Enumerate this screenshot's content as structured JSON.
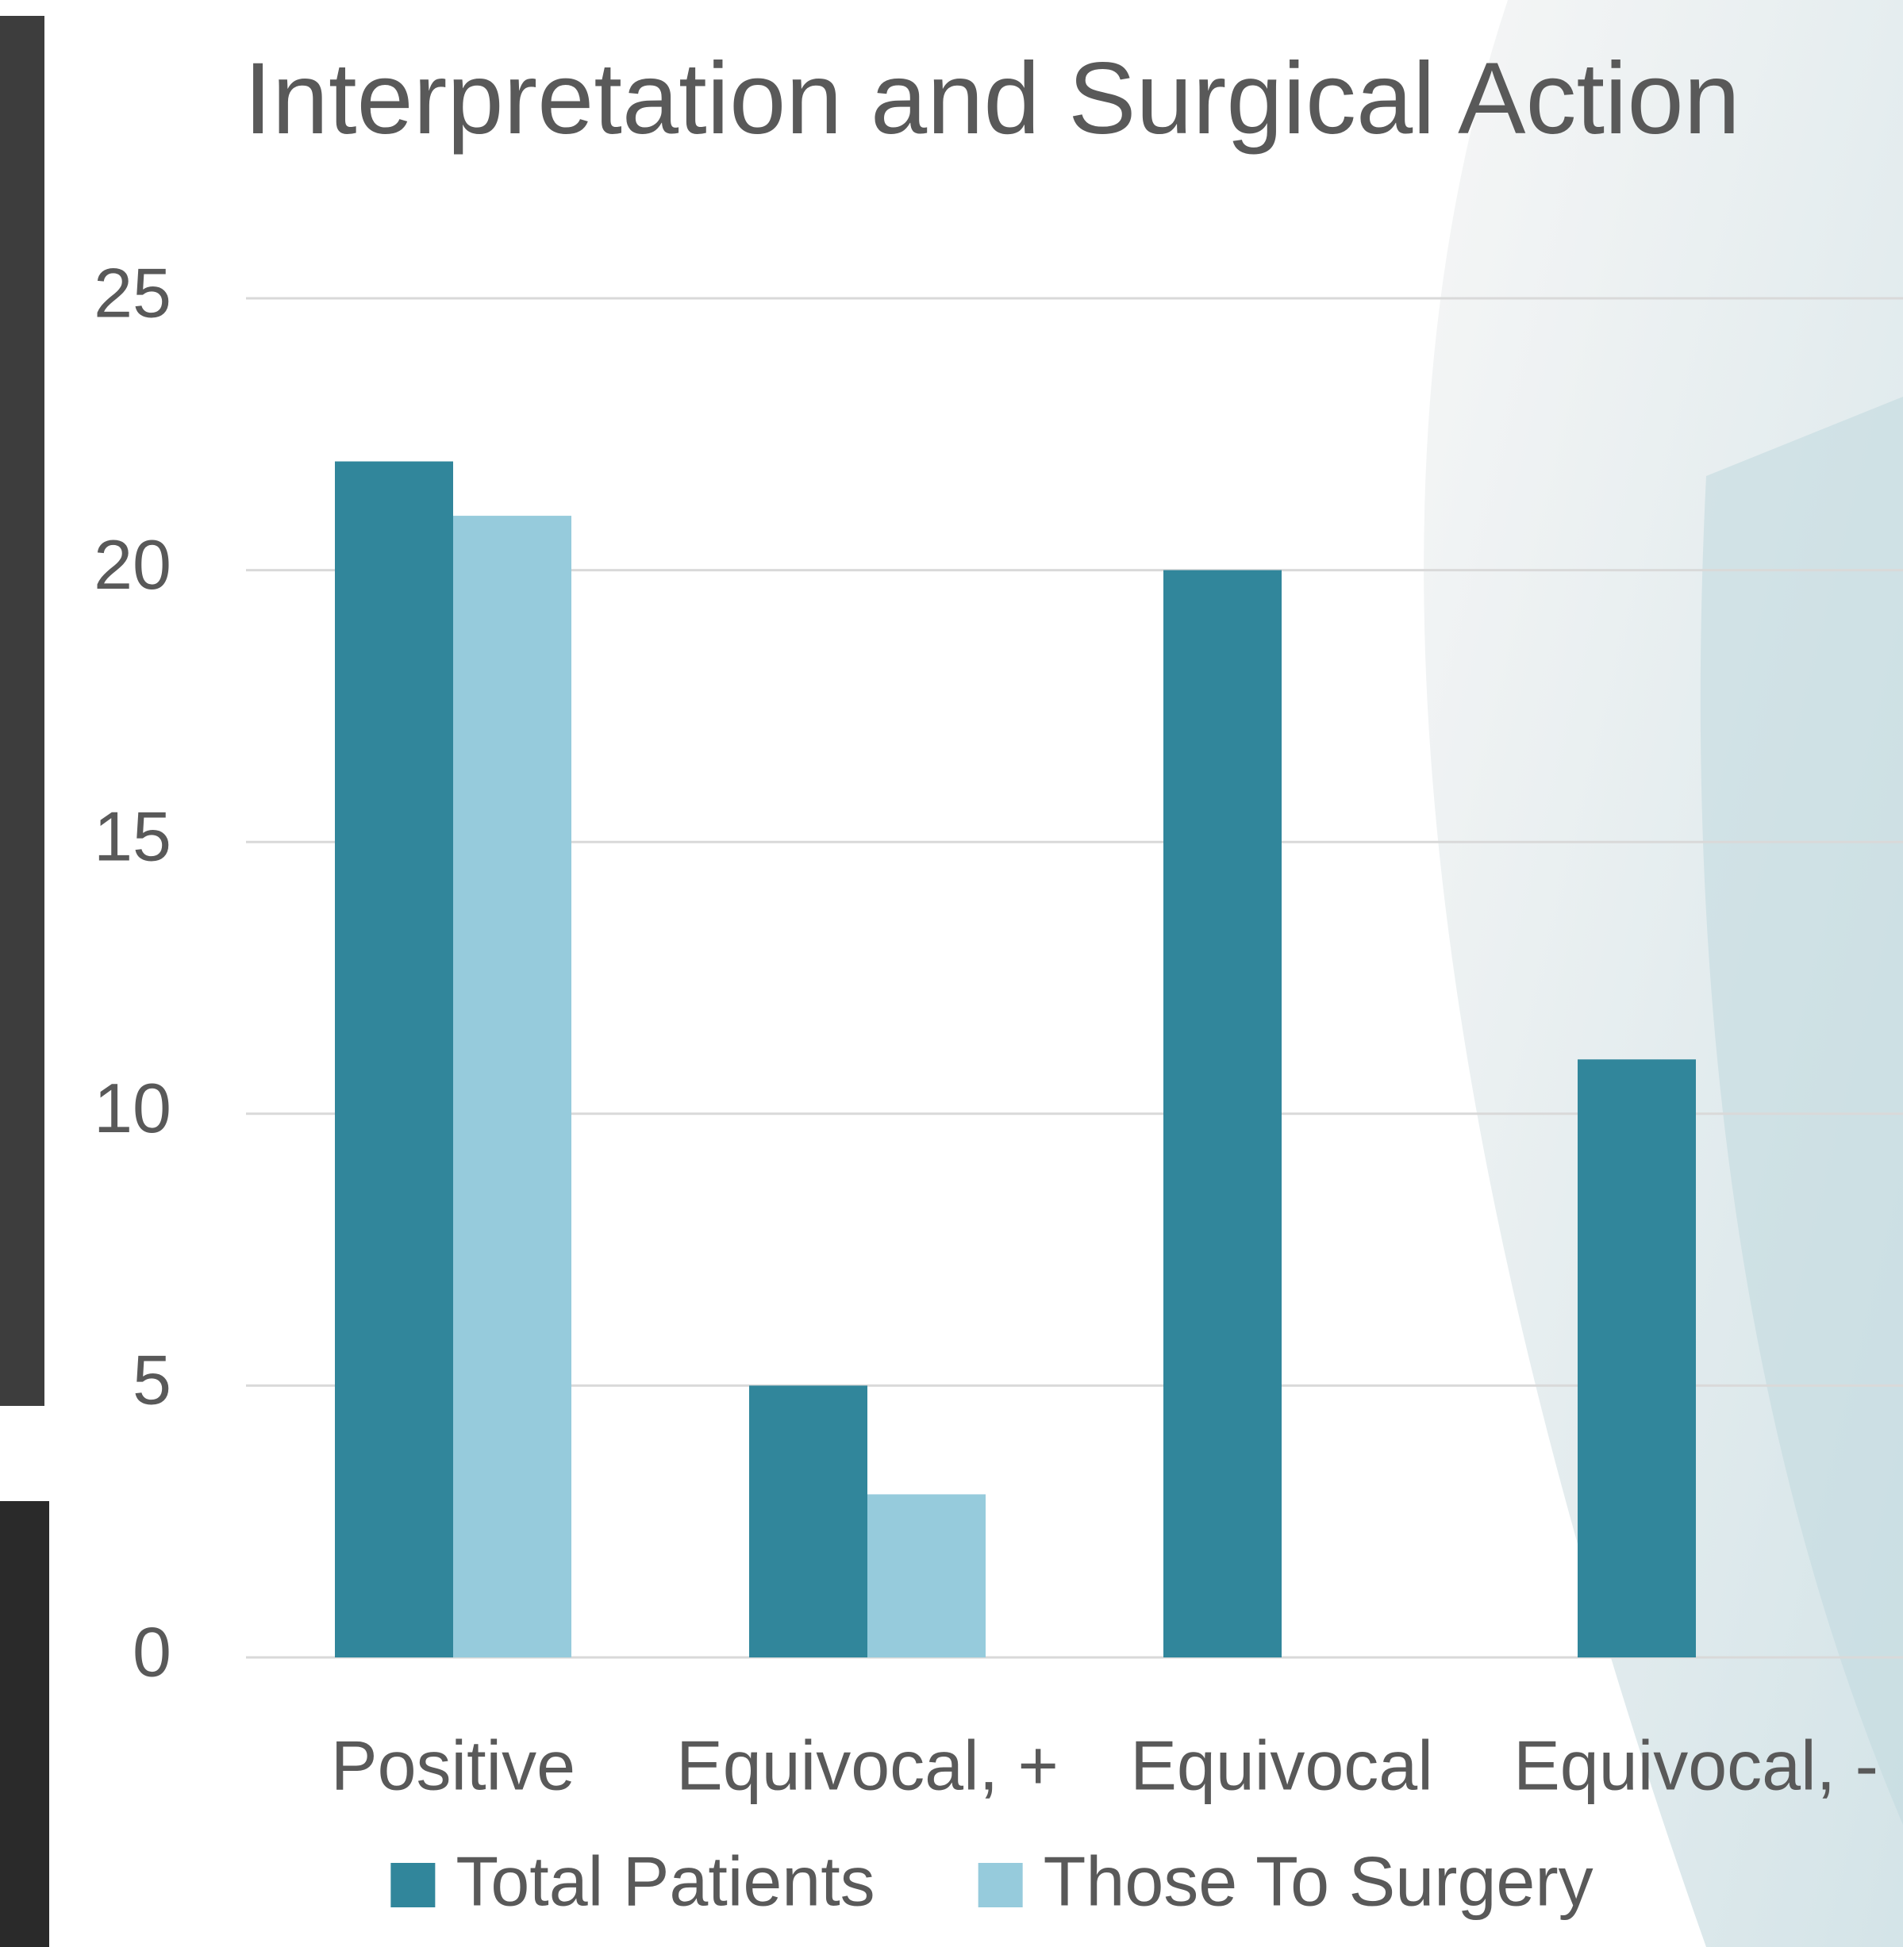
{
  "chart_data": {
    "type": "bar",
    "title": "Interpretation and Surgical Action",
    "categories": [
      "Positive",
      "Equivocal, +",
      "Equivocal",
      "Equivocal, -"
    ],
    "series": [
      {
        "name": "Total Patients",
        "color": "#31869b",
        "values": [
          22,
          5,
          20,
          11
        ]
      },
      {
        "name": "Those To Surgery",
        "color": "#96cbdc",
        "values": [
          21,
          3,
          0,
          0
        ]
      }
    ],
    "ylim": [
      0,
      25
    ],
    "yticks": [
      0,
      5,
      10,
      15,
      20,
      25
    ],
    "grid": true,
    "legend": "bottom"
  }
}
